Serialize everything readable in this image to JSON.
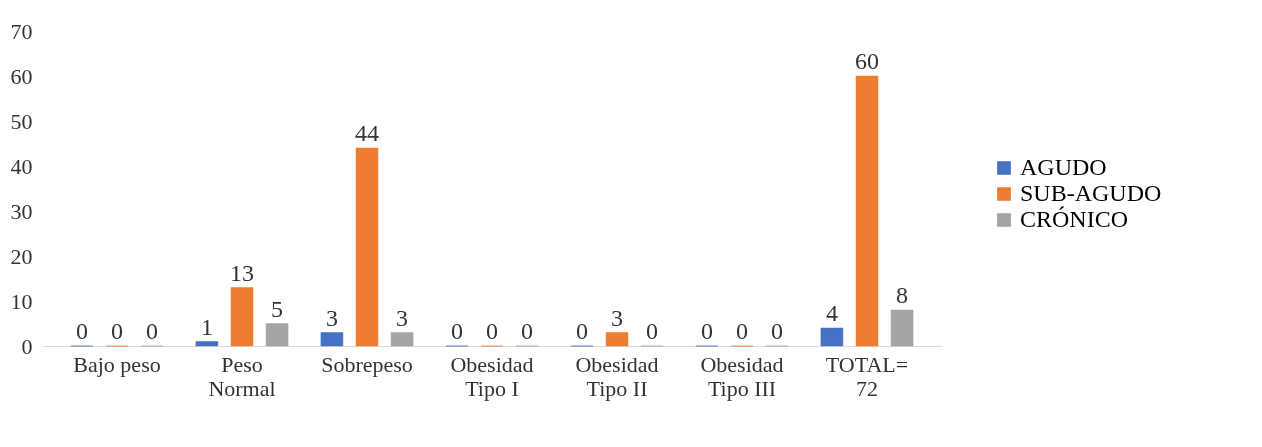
{
  "chart_data": {
    "type": "bar",
    "categories": [
      "Bajo peso",
      "Peso\nNormal",
      "Sobrepeso",
      "Obesidad\nTipo I",
      "Obesidad\nTipo II",
      "Obesidad\nTipo III",
      "TOTAL=\n72"
    ],
    "series": [
      {
        "name": "AGUDO",
        "color": "#4472c4",
        "values": [
          0,
          1,
          3,
          0,
          0,
          0,
          4
        ]
      },
      {
        "name": "SUB-AGUDO",
        "color": "#ed7d31",
        "values": [
          0,
          13,
          44,
          0,
          3,
          0,
          60
        ]
      },
      {
        "name": "CRÓNICO",
        "color": "#a5a5a5",
        "values": [
          0,
          5,
          3,
          0,
          0,
          0,
          8
        ]
      }
    ],
    "ylim": [
      0,
      70
    ],
    "yticks": [
      0,
      10,
      20,
      30,
      40,
      50,
      60,
      70
    ],
    "grid": false,
    "legend": "right",
    "data_labels": true
  }
}
